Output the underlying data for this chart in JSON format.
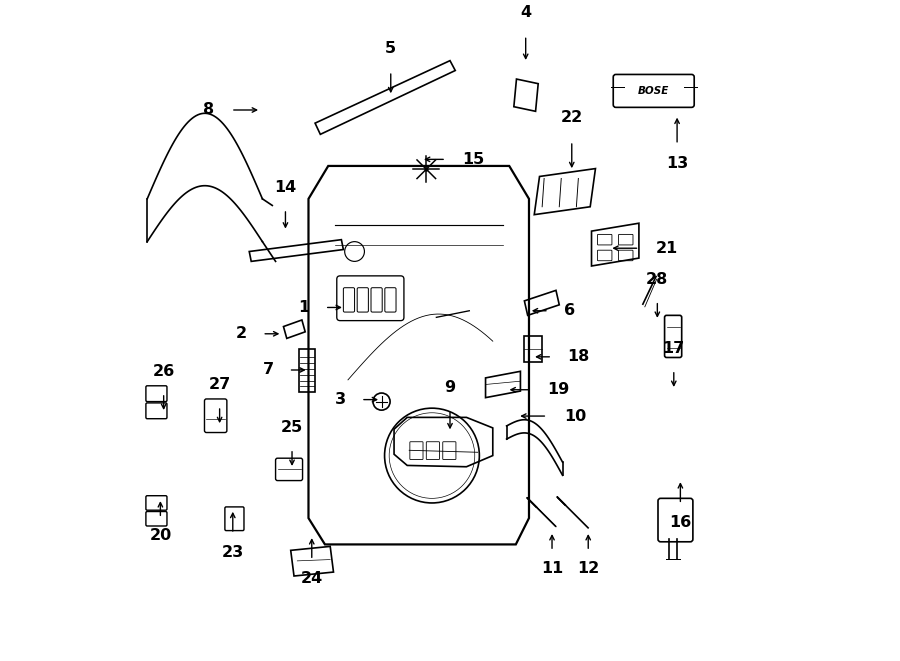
{
  "bg_color": "#ffffff",
  "line_color": "#000000",
  "fig_width": 9.0,
  "fig_height": 6.61,
  "dpi": 100,
  "label_positions": {
    "1": [
      0.305,
      0.535,
      0.04,
      0.0
    ],
    "2": [
      0.21,
      0.495,
      0.04,
      0.0
    ],
    "3": [
      0.36,
      0.395,
      0.04,
      0.0
    ],
    "4": [
      0.615,
      0.955,
      0.0,
      -0.055
    ],
    "5": [
      0.41,
      0.9,
      0.0,
      -0.05
    ],
    "6": [
      0.655,
      0.53,
      -0.04,
      0.0
    ],
    "7": [
      0.25,
      0.44,
      0.04,
      0.0
    ],
    "8": [
      0.16,
      0.835,
      0.06,
      0.0
    ],
    "9": [
      0.5,
      0.385,
      0.0,
      -0.045
    ],
    "10": [
      0.655,
      0.37,
      -0.06,
      0.0
    ],
    "11": [
      0.655,
      0.16,
      0.0,
      0.04
    ],
    "12": [
      0.71,
      0.16,
      0.0,
      0.04
    ],
    "13": [
      0.845,
      0.775,
      0.0,
      0.06
    ],
    "14": [
      0.25,
      0.69,
      0.0,
      -0.045
    ],
    "15": [
      0.5,
      0.76,
      -0.05,
      0.0
    ],
    "16": [
      0.85,
      0.23,
      0.0,
      0.05
    ],
    "17": [
      0.84,
      0.445,
      0.0,
      -0.04
    ],
    "18": [
      0.66,
      0.46,
      -0.04,
      0.0
    ],
    "19": [
      0.63,
      0.41,
      -0.05,
      0.0
    ],
    "20": [
      0.06,
      0.21,
      0.0,
      0.04
    ],
    "21": [
      0.795,
      0.625,
      -0.06,
      0.0
    ],
    "22": [
      0.685,
      0.795,
      0.0,
      -0.06
    ],
    "23": [
      0.17,
      0.185,
      0.0,
      0.05
    ],
    "24": [
      0.29,
      0.145,
      0.0,
      0.05
    ],
    "25": [
      0.26,
      0.325,
      0.0,
      -0.04
    ],
    "26": [
      0.065,
      0.41,
      0.0,
      -0.04
    ],
    "27": [
      0.15,
      0.39,
      0.0,
      -0.04
    ],
    "28": [
      0.815,
      0.55,
      0.0,
      -0.04
    ]
  }
}
